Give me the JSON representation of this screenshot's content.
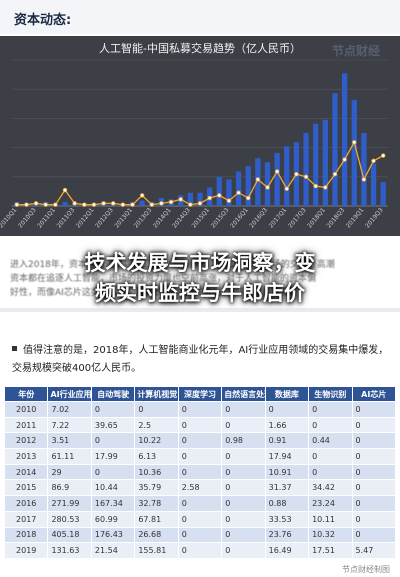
{
  "section": {
    "title": "资本动态:"
  },
  "watermark": "节点财经",
  "banner": {
    "line1": "技术发展与市场洞察，变",
    "line2": "频实时监控与牛郎店价"
  },
  "blurry_lines": [
    "进入2018年，资本开始进入到人工智能相关领域，其在2018年市场的交易最高潮",
    "资本都在追逐人工智能，市场的投资力度也空前高涨，对于人工智能的资本偏",
    "好性，而像AI芯片这类投入大、周期长、风险高的行业，并不被资本看好；"
  ],
  "note": {
    "text": "值得注意的是，2018年，人工智能商业化元年，AI行业应用领域的交易集中爆发，交易规模突破400亿人民币。"
  },
  "table": {
    "headers": [
      "年份",
      "AI行业应用",
      "自动驾驶",
      "计算机视觉",
      "深度学习",
      "自然语言处理",
      "数据库",
      "生物识别",
      "AI芯片"
    ],
    "rows": [
      [
        "2010",
        "7.02",
        "0",
        "0",
        "0",
        "0",
        "0",
        "0",
        "0"
      ],
      [
        "2011",
        "7.22",
        "39.65",
        "2.5",
        "0",
        "0",
        "1.66",
        "0",
        "0"
      ],
      [
        "2012",
        "3.51",
        "0",
        "10.22",
        "0",
        "0.98",
        "0.91",
        "0.44",
        "0"
      ],
      [
        "2013",
        "61.11",
        "17.99",
        "6.13",
        "0",
        "0",
        "17.94",
        "0",
        "0"
      ],
      [
        "2014",
        "29",
        "0",
        "10.36",
        "0",
        "0",
        "10.91",
        "0",
        "0"
      ],
      [
        "2015",
        "86.9",
        "10.44",
        "35.79",
        "2.58",
        "0",
        "31.37",
        "34.42",
        "0"
      ],
      [
        "2016",
        "271.99",
        "167.34",
        "32.78",
        "0",
        "0",
        "0.88",
        "23.24",
        "0"
      ],
      [
        "2017",
        "280.53",
        "60.99",
        "67.81",
        "0",
        "0",
        "33.53",
        "10.11",
        "0"
      ],
      [
        "2018",
        "405.18",
        "176.43",
        "26.68",
        "0",
        "0",
        "23.76",
        "10.32",
        "0"
      ],
      [
        "2019",
        "131.63",
        "21.54",
        "155.81",
        "0",
        "0",
        "16.49",
        "17.51",
        "5.47"
      ]
    ]
  },
  "footer": "节点财经制图",
  "chart_data": {
    "type": "bar",
    "title": "人工智能-中国私募交易趋势（亿人民币）",
    "categories": [
      "2010Q1",
      "2010Q2",
      "2010Q3",
      "2010Q4",
      "2011Q1",
      "2011Q2",
      "2011Q3",
      "2011Q4",
      "2012Q1",
      "2012Q2",
      "2012Q3",
      "2012Q4",
      "2013Q1",
      "2013Q2",
      "2013Q3",
      "2013Q4",
      "2014Q1",
      "2014Q2",
      "2014Q3",
      "2014Q4",
      "2015Q1",
      "2015Q2",
      "2015Q3",
      "2015Q4",
      "2016Q1",
      "2016Q2",
      "2016Q3",
      "2016Q4",
      "2017Q1",
      "2017Q2",
      "2017Q3",
      "2017Q4",
      "2018Q1",
      "2018Q2",
      "2018Q3",
      "2018Q4",
      "2019Q1",
      "2019Q2",
      "2019Q3"
    ],
    "tick_labels": [
      "2010Q1",
      "2010Q3",
      "2011Q1",
      "2011Q3",
      "2012Q1",
      "2012Q3",
      "2013Q1",
      "2013Q3",
      "2014Q1",
      "2014Q3",
      "2015Q1",
      "2015Q3",
      "2016Q1",
      "2016Q3",
      "2017Q1",
      "2017Q3",
      "2018Q1",
      "2018Q3",
      "2019Q1",
      "2019Q3"
    ],
    "series": [
      {
        "values": [
          3,
          2,
          2,
          3,
          2,
          3,
          2,
          2,
          2,
          3,
          2,
          2,
          3,
          4,
          3,
          6,
          5,
          8,
          10,
          10,
          14,
          22,
          20,
          26,
          30,
          36,
          33,
          40,
          45,
          48,
          55,
          62,
          65,
          85,
          100,
          80,
          55,
          32,
          18
        ]
      },
      {
        "values": [
          1,
          1,
          2,
          1,
          1,
          12,
          2,
          1,
          1,
          2,
          2,
          1,
          1,
          8,
          1,
          2,
          3,
          5,
          1,
          2,
          6,
          8,
          4,
          10,
          6,
          20,
          14,
          26,
          13,
          24,
          22,
          15,
          14,
          24,
          35,
          48,
          20,
          34,
          38
        ]
      }
    ],
    "ylim": [
      0,
      110
    ],
    "colors": {
      "bar": "#2f5dc9",
      "line": "#f0a830",
      "marker_fill": "#ffffff"
    },
    "grid": true
  }
}
